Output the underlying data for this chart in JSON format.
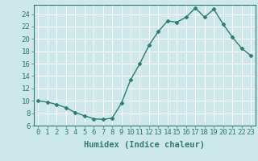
{
  "x": [
    0,
    1,
    2,
    3,
    4,
    5,
    6,
    7,
    8,
    9,
    10,
    11,
    12,
    13,
    14,
    15,
    16,
    17,
    18,
    19,
    20,
    21,
    22,
    23
  ],
  "y": [
    10.0,
    9.8,
    9.4,
    8.9,
    8.1,
    7.6,
    7.1,
    7.0,
    7.2,
    9.6,
    13.4,
    16.0,
    19.0,
    21.2,
    22.9,
    22.7,
    23.5,
    25.0,
    23.5,
    24.8,
    22.4,
    20.3,
    18.5,
    17.3
  ],
  "line_color": "#2e7d6e",
  "marker": "D",
  "marker_size": 2.5,
  "bg_color": "#cce8e8",
  "grid_color": "#ffffff",
  "xlabel": "Humidex (Indice chaleur)",
  "xlim": [
    -0.5,
    23.5
  ],
  "ylim": [
    6,
    25.5
  ],
  "yticks": [
    6,
    8,
    10,
    12,
    14,
    16,
    18,
    20,
    22,
    24
  ],
  "xticks": [
    0,
    1,
    2,
    3,
    4,
    5,
    6,
    7,
    8,
    9,
    10,
    11,
    12,
    13,
    14,
    15,
    16,
    17,
    18,
    19,
    20,
    21,
    22,
    23
  ],
  "font_size": 6.5,
  "label_font_size": 7.5
}
